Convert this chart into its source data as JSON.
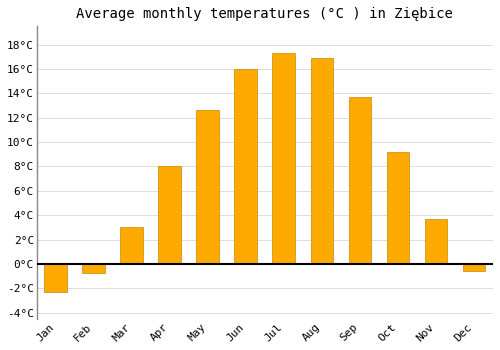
{
  "title": "Average monthly temperatures (°C ) in Ziębice",
  "months": [
    "Jan",
    "Feb",
    "Mar",
    "Apr",
    "May",
    "Jun",
    "Jul",
    "Aug",
    "Sep",
    "Oct",
    "Nov",
    "Dec"
  ],
  "values": [
    -2.3,
    -0.7,
    3.0,
    8.0,
    12.6,
    16.0,
    17.3,
    16.9,
    13.7,
    9.2,
    3.7,
    -0.6
  ],
  "bar_color": "#FFAA00",
  "bar_edge_color": "#CC8800",
  "background_color": "#FFFFFF",
  "grid_color": "#DDDDDD",
  "ylim": [
    -4.5,
    19.5
  ],
  "yticks": [
    -4,
    -2,
    0,
    2,
    4,
    6,
    8,
    10,
    12,
    14,
    16,
    18
  ],
  "zero_line_color": "#000000",
  "title_fontsize": 10,
  "tick_fontsize": 8,
  "left_spine_color": "#888888"
}
